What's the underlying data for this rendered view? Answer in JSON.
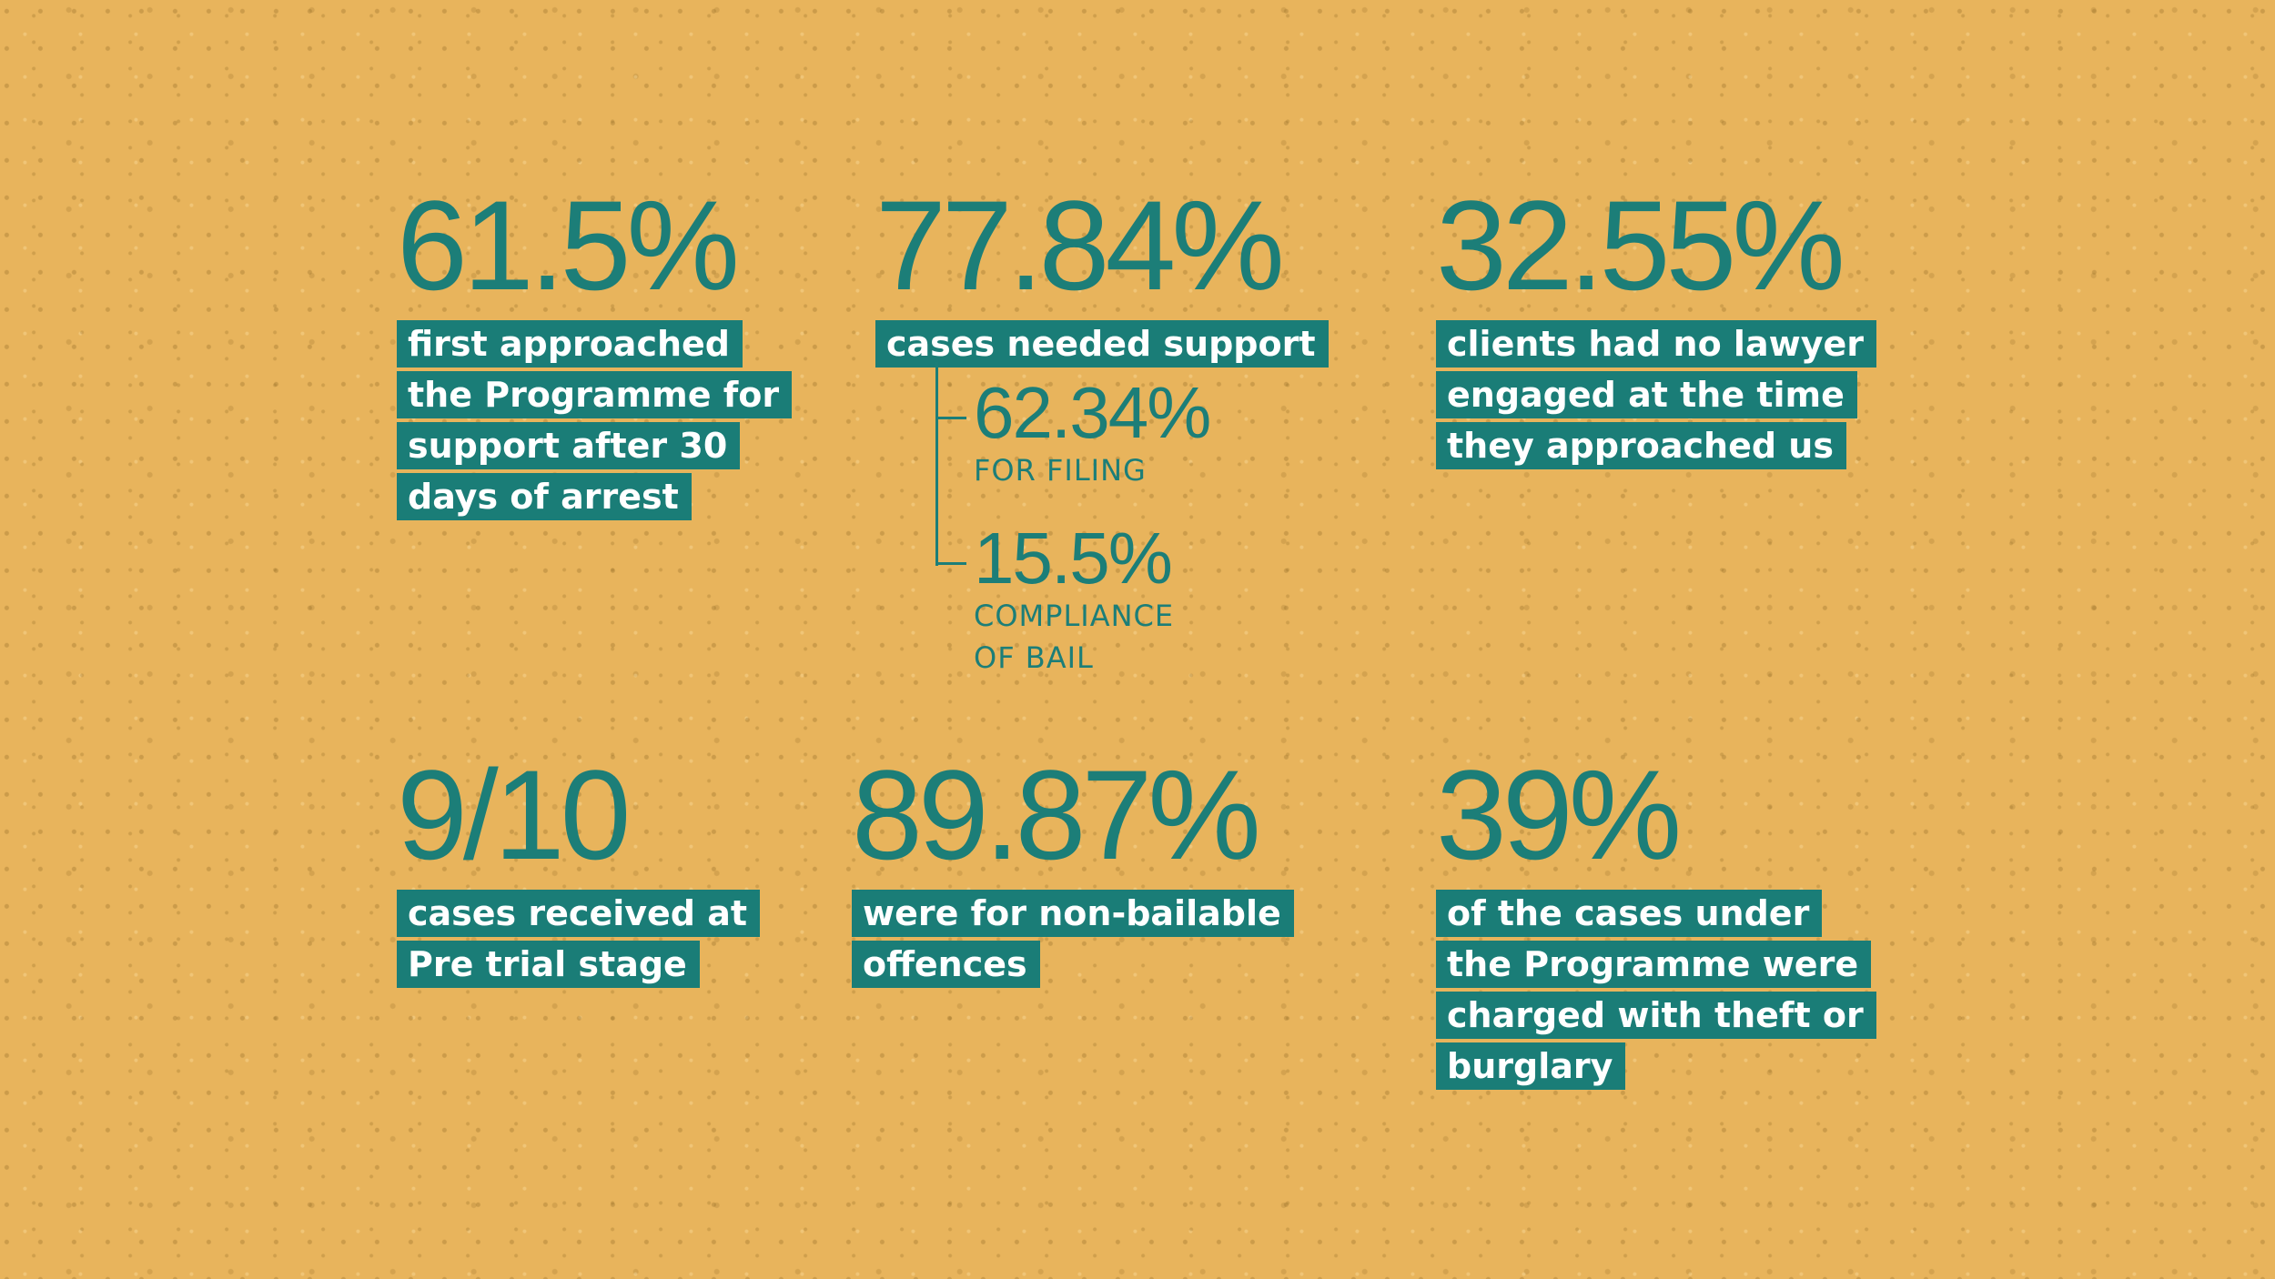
{
  "colors": {
    "background": "#e8b45c",
    "accent_teal": "#1a7d77",
    "label_text": "#ffffff"
  },
  "stats": {
    "arrest_timing": {
      "value": "61.5%",
      "lines": [
        "first approached",
        "the Programme for",
        "support after 30",
        "days of arrest"
      ]
    },
    "support_needed": {
      "value": "77.84%",
      "lines": [
        "cases needed support"
      ],
      "breakdown": {
        "filing": {
          "value": "62.34%",
          "label_lines": [
            "FOR FILING"
          ]
        },
        "bail": {
          "value": "15.5%",
          "label_lines": [
            "COMPLIANCE",
            "OF BAIL"
          ]
        }
      }
    },
    "no_lawyer": {
      "value": "32.55%",
      "lines": [
        "clients had no lawyer",
        "engaged at the time",
        "they approached us"
      ]
    },
    "pre_trial": {
      "value": "9/10",
      "lines": [
        "cases received at",
        "Pre trial stage"
      ]
    },
    "non_bailable": {
      "value": "89.87%",
      "lines": [
        "were for non-bailable",
        "offences"
      ]
    },
    "theft_burglary": {
      "value": "39%",
      "lines": [
        "of the cases under",
        "the Programme were",
        "charged with theft or",
        "burglary"
      ]
    }
  }
}
